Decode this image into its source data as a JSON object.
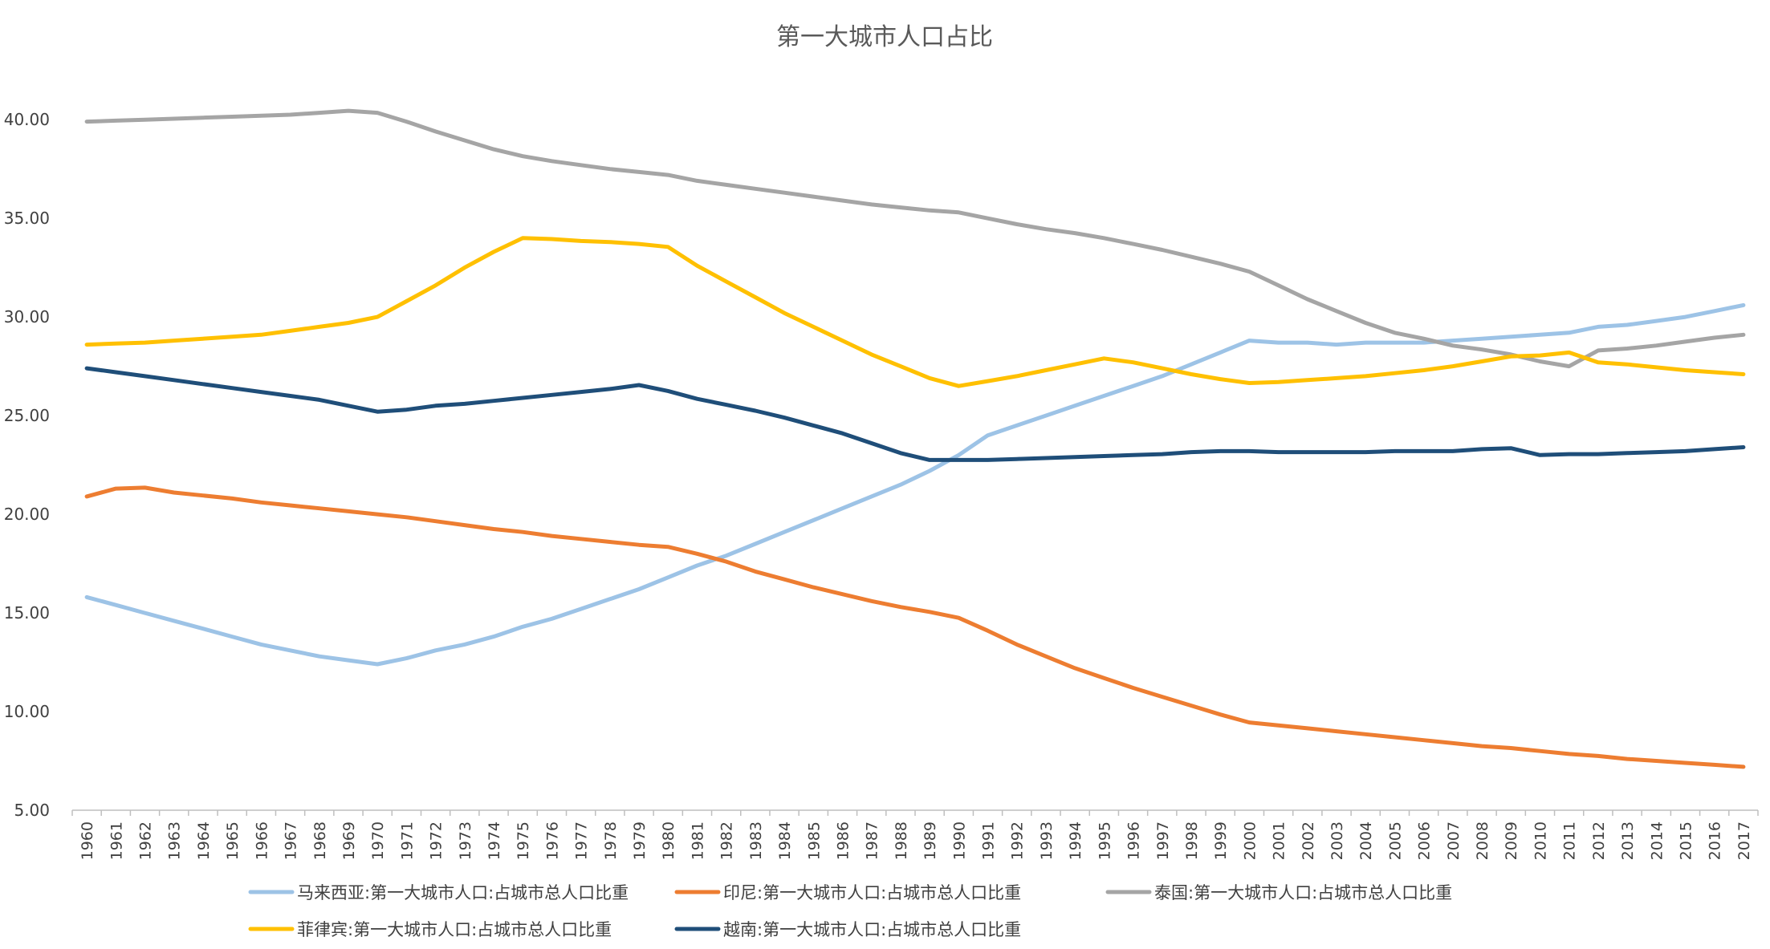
{
  "chart_data": {
    "type": "line",
    "title": "第一大城市人口占比",
    "xlabel": "",
    "ylabel": "",
    "ylim": [
      5,
      42
    ],
    "yticks": [
      "5.00",
      "10.00",
      "15.00",
      "20.00",
      "25.00",
      "30.00",
      "35.00",
      "40.00"
    ],
    "grid": false,
    "legend_position": "bottom",
    "x": [
      1960,
      1961,
      1962,
      1963,
      1964,
      1965,
      1966,
      1967,
      1968,
      1969,
      1970,
      1971,
      1972,
      1973,
      1974,
      1975,
      1976,
      1977,
      1978,
      1979,
      1980,
      1981,
      1982,
      1983,
      1984,
      1985,
      1986,
      1987,
      1988,
      1989,
      1990,
      1991,
      1992,
      1993,
      1994,
      1995,
      1996,
      1997,
      1998,
      1999,
      2000,
      2001,
      2002,
      2003,
      2004,
      2005,
      2006,
      2007,
      2008,
      2009,
      2010,
      2011,
      2012,
      2013,
      2014,
      2015,
      2016,
      2017
    ],
    "series": [
      {
        "name": "马来西亚:第一大城市人口:占城市总人口比重",
        "color": "#9DC3E6",
        "values": [
          15.8,
          15.4,
          15.0,
          14.6,
          14.2,
          13.8,
          13.4,
          13.1,
          12.8,
          12.6,
          12.4,
          12.7,
          13.1,
          13.4,
          13.8,
          14.3,
          14.7,
          15.2,
          15.7,
          16.2,
          16.8,
          17.4,
          17.9,
          18.5,
          19.1,
          19.7,
          20.3,
          20.9,
          21.5,
          22.2,
          23.0,
          24.0,
          24.5,
          25.0,
          25.5,
          26.0,
          26.5,
          27.0,
          27.6,
          28.2,
          28.8,
          28.7,
          28.7,
          28.6,
          28.7,
          28.7,
          28.7,
          28.8,
          28.9,
          29.0,
          29.1,
          29.2,
          29.5,
          29.6,
          29.8,
          30.0,
          30.3,
          30.6
        ]
      },
      {
        "name": "印尼:第一大城市人口:占城市总人口比重",
        "color": "#ED7D31",
        "values": [
          20.9,
          21.3,
          21.35,
          21.1,
          20.95,
          20.8,
          20.6,
          20.45,
          20.3,
          20.15,
          20.0,
          19.85,
          19.65,
          19.45,
          19.25,
          19.1,
          18.9,
          18.75,
          18.6,
          18.45,
          18.35,
          18.0,
          17.6,
          17.1,
          16.7,
          16.3,
          15.95,
          15.6,
          15.3,
          15.05,
          14.75,
          14.1,
          13.4,
          12.8,
          12.2,
          11.7,
          11.2,
          10.75,
          10.3,
          9.85,
          9.45,
          9.3,
          9.15,
          9.0,
          8.85,
          8.7,
          8.55,
          8.4,
          8.25,
          8.15,
          8.0,
          7.85,
          7.75,
          7.6,
          7.5,
          7.4,
          7.3,
          7.2
        ]
      },
      {
        "name": "泰国:第一大城市人口:占城市总人口比重",
        "color": "#A5A5A5",
        "values": [
          39.9,
          39.95,
          40.0,
          40.05,
          40.1,
          40.15,
          40.2,
          40.25,
          40.35,
          40.45,
          40.35,
          39.9,
          39.4,
          38.95,
          38.5,
          38.15,
          37.9,
          37.7,
          37.5,
          37.35,
          37.2,
          36.9,
          36.7,
          36.5,
          36.3,
          36.1,
          35.9,
          35.7,
          35.55,
          35.4,
          35.3,
          35.0,
          34.7,
          34.45,
          34.25,
          34.0,
          33.7,
          33.4,
          33.05,
          32.7,
          32.3,
          31.6,
          30.9,
          30.3,
          29.7,
          29.2,
          28.9,
          28.55,
          28.35,
          28.1,
          27.75,
          27.5,
          28.3,
          28.4,
          28.55,
          28.75,
          28.95,
          29.1
        ]
      },
      {
        "name": "菲律宾:第一大城市人口:占城市总人口比重",
        "color": "#FFC000",
        "values": [
          28.6,
          28.65,
          28.7,
          28.8,
          28.9,
          29.0,
          29.1,
          29.3,
          29.5,
          29.7,
          30.0,
          30.8,
          31.6,
          32.5,
          33.3,
          34.0,
          33.95,
          33.85,
          33.8,
          33.7,
          33.55,
          32.6,
          31.8,
          31.0,
          30.2,
          29.5,
          28.8,
          28.1,
          27.5,
          26.9,
          26.5,
          26.75,
          27.0,
          27.3,
          27.6,
          27.9,
          27.7,
          27.4,
          27.1,
          26.85,
          26.65,
          26.7,
          26.8,
          26.9,
          27.0,
          27.15,
          27.3,
          27.5,
          27.75,
          28.0,
          28.05,
          28.2,
          27.7,
          27.6,
          27.45,
          27.3,
          27.2,
          27.1
        ]
      },
      {
        "name": "越南:第一大城市人口:占城市总人口比重",
        "color": "#1F4E79",
        "values": [
          27.4,
          27.2,
          27.0,
          26.8,
          26.6,
          26.4,
          26.2,
          26.0,
          25.8,
          25.5,
          25.2,
          25.3,
          25.5,
          25.6,
          25.75,
          25.9,
          26.05,
          26.2,
          26.35,
          26.55,
          26.25,
          25.85,
          25.55,
          25.25,
          24.9,
          24.5,
          24.1,
          23.6,
          23.1,
          22.75,
          22.75,
          22.75,
          22.8,
          22.85,
          22.9,
          22.95,
          23.0,
          23.05,
          23.15,
          23.2,
          23.2,
          23.15,
          23.15,
          23.15,
          23.15,
          23.2,
          23.2,
          23.2,
          23.3,
          23.35,
          23.0,
          23.05,
          23.05,
          23.1,
          23.15,
          23.2,
          23.3,
          23.4
        ]
      }
    ]
  }
}
